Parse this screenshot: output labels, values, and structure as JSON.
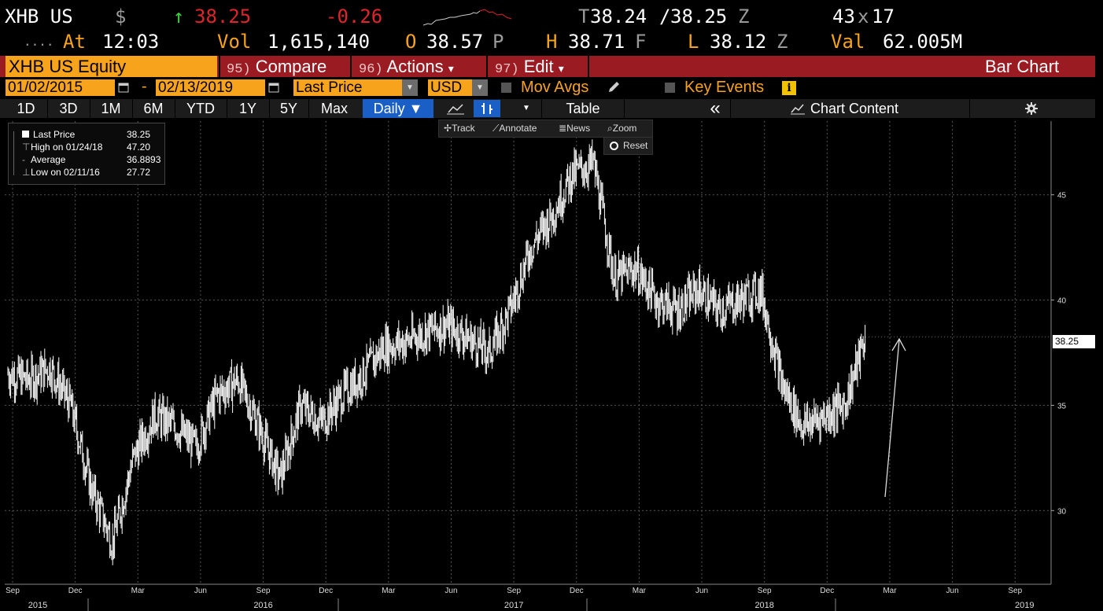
{
  "quote": {
    "ticker": "XHB US",
    "currency_symbol": "$",
    "arrow": "↑",
    "last": "38.25",
    "change": "-0.26",
    "bid_ask_prefix": "T",
    "bid": "38.24",
    "ask": "38.25",
    "ask_suffix": "Z",
    "size": "43",
    "size_x": "x",
    "size2": "17"
  },
  "stats": {
    "dots": "....",
    "at_label": "At",
    "time": "12:03",
    "vol_label": "Vol",
    "volume": "1,615,140",
    "open_label": "O",
    "open": "38.57",
    "open_suffix": "P",
    "high_label": "H",
    "high": "38.71",
    "high_suffix": "F",
    "low_label": "L",
    "low": "38.12",
    "low_suffix": "Z",
    "val_label": "Val",
    "value": "62.005M"
  },
  "menubar": {
    "security": "XHB US Equity",
    "compare_num": "95)",
    "compare": "Compare",
    "actions_num": "96)",
    "actions": "Actions",
    "edit_num": "97)",
    "edit": "Edit",
    "dropdown_glyph": "▾",
    "title": "Bar Chart"
  },
  "range": {
    "start": "01/02/2015",
    "dash": "-",
    "end": "02/13/2019",
    "field": "Last Price",
    "currency": "USD",
    "mov_avgs": "Mov Avgs",
    "key_events": "Key Events",
    "info_glyph": "i"
  },
  "tabs": {
    "periods": [
      "1D",
      "3D",
      "1M",
      "6M",
      "YTD",
      "1Y",
      "5Y",
      "Max"
    ],
    "frequency": "Daily ▼",
    "table": "Table",
    "collapse": "«",
    "chart_content": "Chart Content"
  },
  "legend": {
    "rows": [
      {
        "label": "Last Price",
        "value": "38.25"
      },
      {
        "label": "High on 01/24/18",
        "value": "47.20"
      },
      {
        "label": "Average",
        "value": "36.8893"
      },
      {
        "label": "Low on 02/11/16",
        "value": "27.72"
      }
    ]
  },
  "tools": {
    "track": "Track",
    "annotate": "Annotate",
    "news": "News",
    "zoom": "Zoom",
    "reset": "Reset"
  },
  "colors": {
    "amber": "#f7a31c",
    "red_bar": "#9a1b22",
    "active_tab": "#1a5fc6",
    "price_up": "#e0242b"
  },
  "chart_data": {
    "type": "line",
    "y_ticks": [
      "30",
      "35",
      "40",
      "45"
    ],
    "ylim": [
      26.5,
      48.5
    ],
    "current_label": "38.25",
    "x_months": [
      "Sep",
      "Dec",
      "Mar",
      "Jun",
      "Sep",
      "Dec",
      "Mar",
      "Jun",
      "Sep",
      "Dec",
      "Mar",
      "Jun",
      "Sep",
      "Dec",
      "Mar",
      "Jun",
      "Sep"
    ],
    "x_years": [
      "2015",
      "2016",
      "2017",
      "2018",
      "2019"
    ],
    "series": [
      {
        "x": [
          "2015-09",
          "2015-10",
          "2015-11",
          "2015-12",
          "2016-01",
          "2016-02",
          "2016-03",
          "2016-04",
          "2016-05",
          "2016-06",
          "2016-07",
          "2016-08",
          "2016-09",
          "2016-10",
          "2016-11",
          "2016-12",
          "2017-01",
          "2017-02",
          "2017-03",
          "2017-04",
          "2017-05",
          "2017-06",
          "2017-07",
          "2017-08",
          "2017-09",
          "2017-10",
          "2017-11",
          "2017-12",
          "2018-01",
          "2018-02",
          "2018-03",
          "2018-04",
          "2018-05",
          "2018-06",
          "2018-07",
          "2018-08",
          "2018-09",
          "2018-10",
          "2018-11",
          "2018-12",
          "2019-01",
          "2019-02"
        ],
        "values": [
          36.5,
          36.2,
          36.8,
          35.0,
          31.0,
          28.5,
          32.5,
          34.5,
          34.0,
          33.0,
          35.5,
          36.2,
          34.0,
          31.5,
          35.0,
          34.2,
          35.5,
          36.5,
          37.8,
          38.0,
          38.5,
          38.8,
          38.2,
          37.5,
          39.5,
          42.5,
          44.0,
          46.0,
          46.5,
          41.0,
          41.5,
          40.0,
          39.5,
          40.5,
          39.5,
          40.0,
          40.5,
          36.0,
          34.0,
          34.5,
          35.0,
          38.25
        ]
      }
    ],
    "annotation": "trend arrow",
    "grid": true
  }
}
